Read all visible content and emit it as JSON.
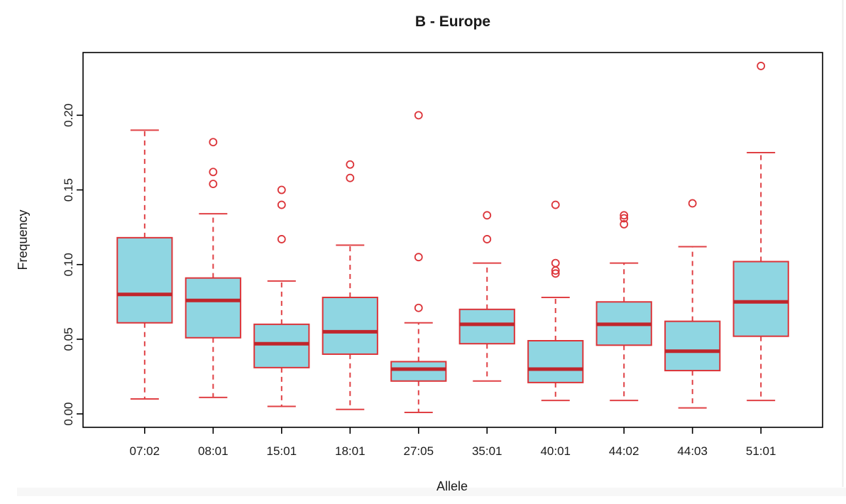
{
  "figure": {
    "background": "#ffffff",
    "bottom_strip_color": "#f7f7f7",
    "edge_line_color": "#ededed"
  },
  "chart_data": {
    "type": "boxplot",
    "title": "B - Europe",
    "xlabel": "Allele",
    "ylabel": "Frequency",
    "categories": [
      "07:02",
      "08:01",
      "15:01",
      "18:01",
      "27:05",
      "35:01",
      "40:01",
      "44:02",
      "44:03",
      "51:01"
    ],
    "y_ticks": [
      0,
      0.05,
      0.1,
      0.15,
      0.2
    ],
    "y_tick_labels": [
      "0.00",
      "0.05",
      "0.10",
      "0.15",
      "0.20"
    ],
    "ylim": [
      -0.009,
      0.242
    ],
    "grid": false,
    "legend": null,
    "boxes": [
      {
        "allele": "07:02",
        "whisker_low": 0.01,
        "q1": 0.061,
        "median": 0.08,
        "q3": 0.118,
        "whisker_high": 0.19,
        "outliers": []
      },
      {
        "allele": "08:01",
        "whisker_low": 0.011,
        "q1": 0.051,
        "median": 0.076,
        "q3": 0.091,
        "whisker_high": 0.134,
        "outliers": [
          0.182,
          0.162,
          0.154
        ]
      },
      {
        "allele": "15:01",
        "whisker_low": 0.005,
        "q1": 0.031,
        "median": 0.047,
        "q3": 0.06,
        "whisker_high": 0.089,
        "outliers": [
          0.15,
          0.14,
          0.117
        ]
      },
      {
        "allele": "18:01",
        "whisker_low": 0.003,
        "q1": 0.04,
        "median": 0.055,
        "q3": 0.078,
        "whisker_high": 0.113,
        "outliers": [
          0.167,
          0.158
        ]
      },
      {
        "allele": "27:05",
        "whisker_low": 0.001,
        "q1": 0.022,
        "median": 0.03,
        "q3": 0.035,
        "whisker_high": 0.061,
        "outliers": [
          0.2,
          0.105,
          0.071
        ]
      },
      {
        "allele": "35:01",
        "whisker_low": 0.022,
        "q1": 0.047,
        "median": 0.06,
        "q3": 0.07,
        "whisker_high": 0.101,
        "outliers": [
          0.133,
          0.117
        ]
      },
      {
        "allele": "40:01",
        "whisker_low": 0.009,
        "q1": 0.021,
        "median": 0.03,
        "q3": 0.049,
        "whisker_high": 0.078,
        "outliers": [
          0.14,
          0.101,
          0.096,
          0.094
        ]
      },
      {
        "allele": "44:02",
        "whisker_low": 0.009,
        "q1": 0.046,
        "median": 0.06,
        "q3": 0.075,
        "whisker_high": 0.101,
        "outliers": [
          0.133,
          0.131,
          0.127
        ]
      },
      {
        "allele": "44:03",
        "whisker_low": 0.004,
        "q1": 0.029,
        "median": 0.042,
        "q3": 0.062,
        "whisker_high": 0.112,
        "outliers": [
          0.141
        ]
      },
      {
        "allele": "51:01",
        "whisker_low": 0.009,
        "q1": 0.052,
        "median": 0.075,
        "q3": 0.102,
        "whisker_high": 0.175,
        "outliers": [
          0.233
        ]
      }
    ],
    "colors": {
      "box_fill": "#8FD6E2",
      "box_border": "#DC3439",
      "median": "#C0262C",
      "whisker": "#E04145",
      "outlier": "#DC3439",
      "axis": "#000000",
      "text": "#1A1A1A"
    }
  }
}
